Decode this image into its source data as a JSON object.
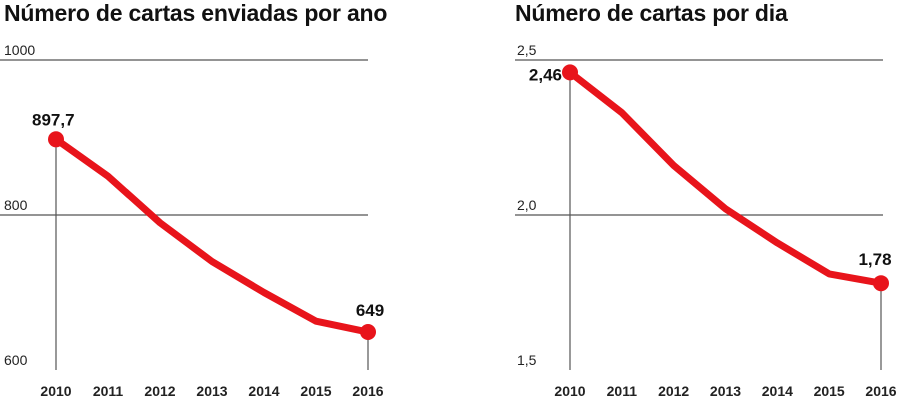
{
  "chart_data": [
    {
      "type": "line",
      "title": "Número de cartas enviadas por ano",
      "x": [
        2010,
        2011,
        2012,
        2013,
        2014,
        2015,
        2016
      ],
      "x_labels": [
        "2010",
        "2011",
        "2012",
        "2013",
        "2014",
        "2015",
        "2016"
      ],
      "values": [
        897.7,
        850,
        790,
        740,
        700,
        663,
        649
      ],
      "yticks": [
        600,
        800,
        1000
      ],
      "ytick_labels": [
        "600",
        "800",
        "1000"
      ],
      "ylim": [
        600,
        1000
      ],
      "data_labels": [
        {
          "index": 0,
          "text": "897,7"
        },
        {
          "index": 6,
          "text": "649"
        }
      ],
      "line_color": "#e8141b",
      "grid": true
    },
    {
      "type": "line",
      "title": "Número de cartas por dia",
      "x": [
        2010,
        2011,
        2012,
        2013,
        2014,
        2015,
        2016
      ],
      "x_labels": [
        "2010",
        "2011",
        "2012",
        "2013",
        "2014",
        "2015",
        "2016"
      ],
      "values": [
        2.46,
        2.33,
        2.16,
        2.02,
        1.91,
        1.81,
        1.78
      ],
      "yticks": [
        1.5,
        2.0,
        2.5
      ],
      "ytick_labels": [
        "1,5",
        "2,0",
        "2,5"
      ],
      "ylim": [
        1.5,
        2.5
      ],
      "data_labels": [
        {
          "index": 0,
          "text": "2,46"
        },
        {
          "index": 6,
          "text": "1,78"
        }
      ],
      "line_color": "#e8141b",
      "grid": true
    }
  ]
}
